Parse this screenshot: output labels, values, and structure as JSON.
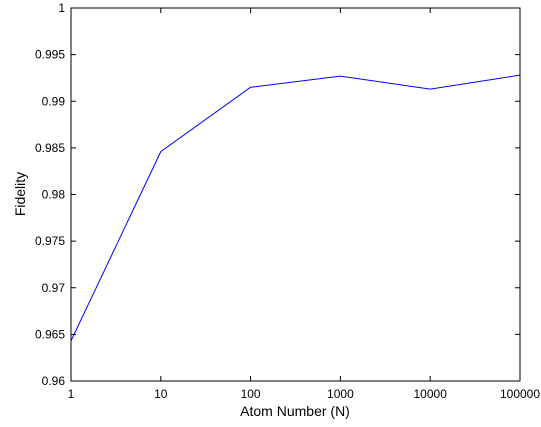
{
  "chart_data": {
    "type": "line",
    "title": "",
    "xlabel": "Atom Number  (N)",
    "ylabel": "Fidelity",
    "x_scale": "log",
    "xlim": [
      1,
      100000
    ],
    "ylim": [
      0.96,
      1
    ],
    "x_ticks": [
      "1",
      "10",
      "100",
      "1000",
      "10000",
      "100000"
    ],
    "y_ticks": [
      "0.96",
      "0.965",
      "0.97",
      "0.975",
      "0.98",
      "0.985",
      "0.99",
      "0.995",
      "1"
    ],
    "grid": false,
    "series": [
      {
        "x": [
          1,
          10,
          100,
          1000,
          10000,
          100000
        ],
        "y": [
          0.9643,
          0.9846,
          0.9915,
          0.9927,
          0.9913,
          0.9928
        ],
        "color": "#0000ff"
      }
    ]
  }
}
